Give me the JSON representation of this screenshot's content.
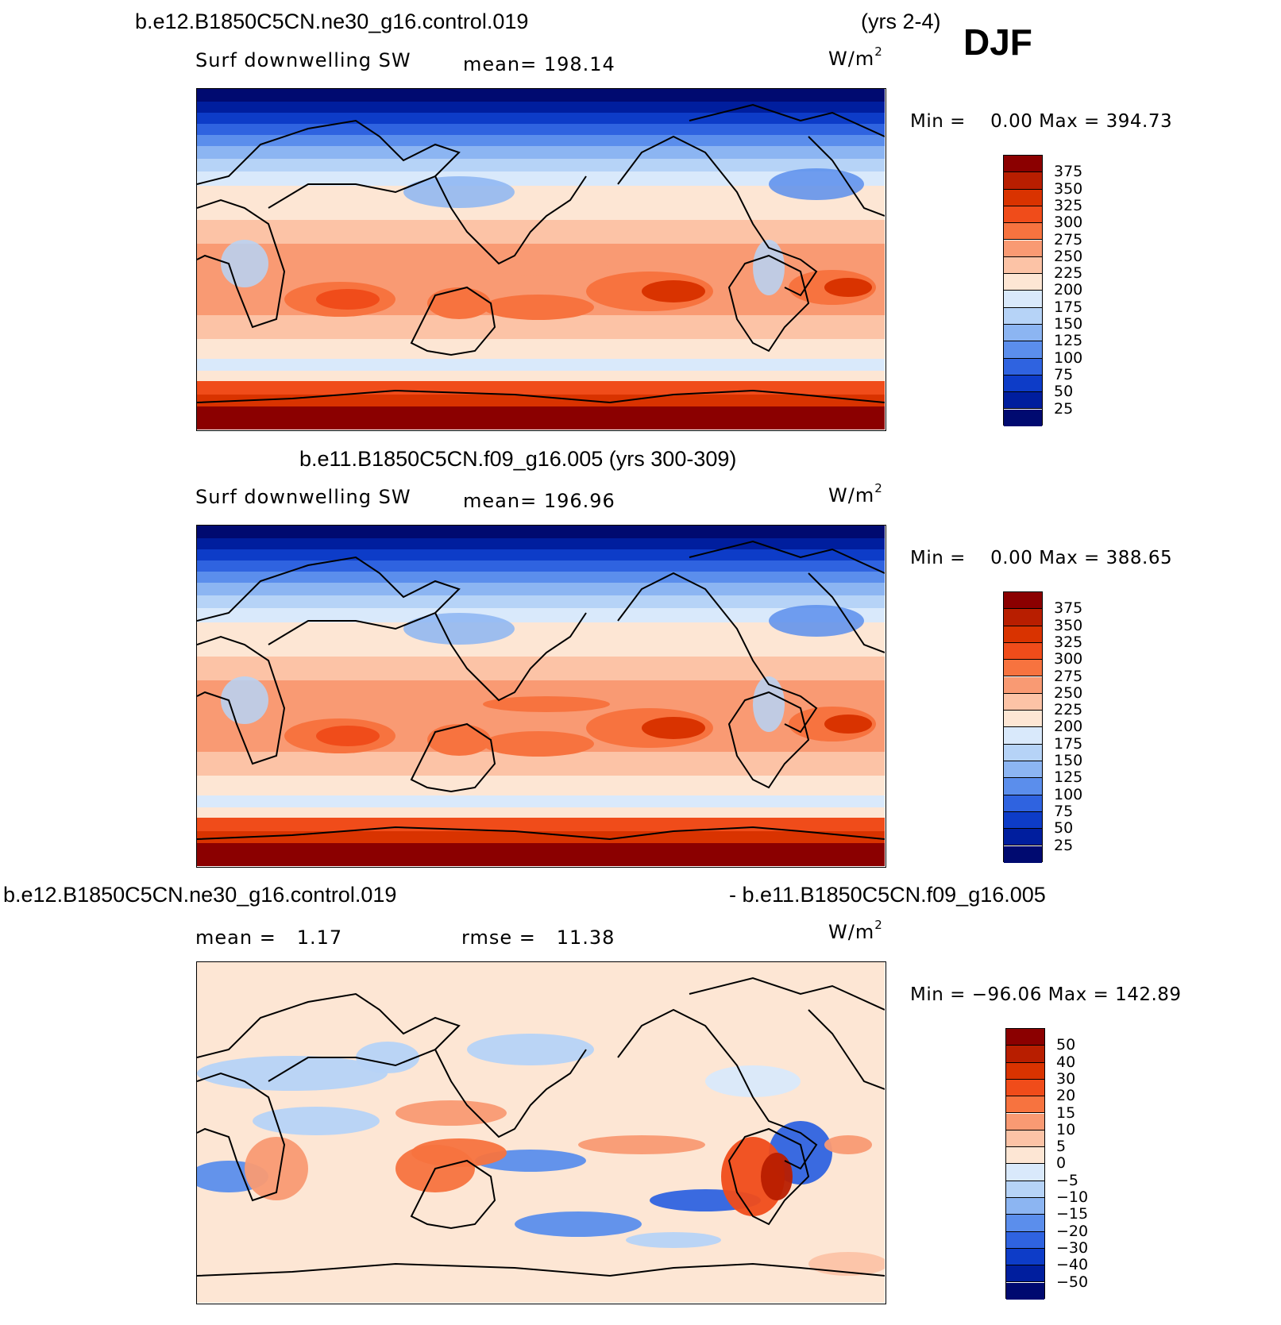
{
  "header": {
    "case_title": "b.e12.B1850C5CN.ne30_g16.control.019",
    "years": "(yrs 2-4)",
    "season": "DJF"
  },
  "panels": [
    {
      "title": "",
      "variable": "Surf downwelling SW",
      "stat_left": "mean=",
      "stat_left_value": "198.14",
      "unit_base": "W/m",
      "unit_exp": "2",
      "minmax": "Min =    0.00 Max = 394.73",
      "kind": "abs"
    },
    {
      "title": "b.e11.B1850C5CN.f09_g16.005 (yrs 300-309)",
      "variable": "Surf downwelling SW",
      "stat_left": "mean=",
      "stat_left_value": "196.96",
      "unit_base": "W/m",
      "unit_exp": "2",
      "minmax": "Min =    0.00 Max = 388.65",
      "kind": "abs2"
    },
    {
      "title_left": "b.e12.B1850C5CN.ne30_g16.control.019",
      "title_right": "- b.e11.B1850C5CN.f09_g16.005",
      "stat_left": "mean =",
      "stat_left_value": "1.17",
      "stat_right": "rmse =",
      "stat_right_value": "11.38",
      "unit_base": "W/m",
      "unit_exp": "2",
      "minmax": "Min = −96.06 Max = 142.89",
      "kind": "diff"
    }
  ],
  "colorbars": {
    "abs": {
      "labels": [
        "375",
        "350",
        "325",
        "300",
        "275",
        "250",
        "225",
        "200",
        "175",
        "150",
        "125",
        "100",
        "75",
        "50",
        "25"
      ],
      "colors": [
        "#8b0000",
        "#b81e00",
        "#d93300",
        "#f04c1a",
        "#f7733f",
        "#f99a73",
        "#fcc3a6",
        "#fde6d4",
        "#d9e9fb",
        "#b6d3f7",
        "#8cb5f2",
        "#5b8eec",
        "#2f63e0",
        "#0d3cc8",
        "#001e9e",
        "#000a70"
      ]
    },
    "diff": {
      "labels": [
        "50",
        "40",
        "30",
        "20",
        "15",
        "10",
        "5",
        "0",
        "−5",
        "−10",
        "−15",
        "−20",
        "−30",
        "−40",
        "−50"
      ],
      "colors": [
        "#8b0000",
        "#b81e00",
        "#d93300",
        "#f04c1a",
        "#f7733f",
        "#f99a73",
        "#fcc3a6",
        "#fde6d4",
        "#d9e9fb",
        "#b6d3f7",
        "#8cb5f2",
        "#5b8eec",
        "#2f63e0",
        "#0d3cc8",
        "#001e9e",
        "#000a70"
      ]
    }
  }
}
